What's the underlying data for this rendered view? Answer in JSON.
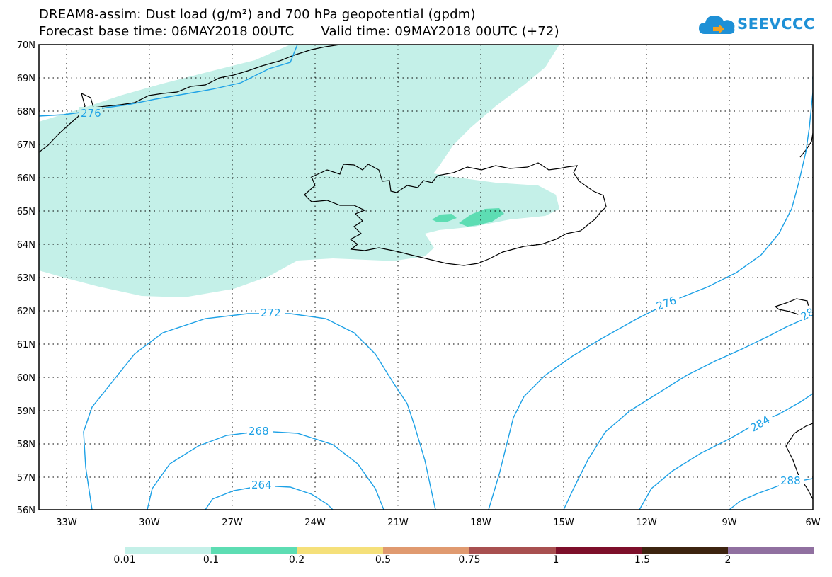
{
  "title": {
    "line1": "DREAM8-assim: Dust load (g/m²) and 700 hPa geopotential (gpdm)",
    "line2_base": "Forecast base time: 06MAY2018 00UTC",
    "line2_valid": "Valid time: 09MAY2018 00UTC (+72)"
  },
  "logo": {
    "text": "SEEVCCC",
    "icon": "cloud-logo-icon"
  },
  "map": {
    "lon_labels": [
      "33W",
      "30W",
      "27W",
      "24W",
      "21W",
      "18W",
      "15W",
      "12W",
      "9W",
      "6W"
    ],
    "lat_labels": [
      "70N",
      "69N",
      "68N",
      "67N",
      "66N",
      "65N",
      "64N",
      "63N",
      "62N",
      "61N",
      "60N",
      "59N",
      "58N",
      "57N",
      "56N"
    ],
    "lon_range": [
      -34,
      -6
    ],
    "lat_range": [
      56,
      70
    ],
    "grid": "dotted",
    "contour_color": "#1da1e6",
    "contour_labels": [
      "276",
      "272",
      "268",
      "264",
      "276",
      "284",
      "288",
      "28"
    ]
  },
  "legend": {
    "labels": [
      "0.01",
      "0.1",
      "0.2",
      "0.5",
      "0.75",
      "1",
      "1.5",
      "2"
    ],
    "colors": [
      "#c4f0e8",
      "#5dddb3",
      "#f5e07a",
      "#e09a70",
      "#a85050",
      "#7d0f2a",
      "#3d2410",
      "#9070a0"
    ]
  }
}
